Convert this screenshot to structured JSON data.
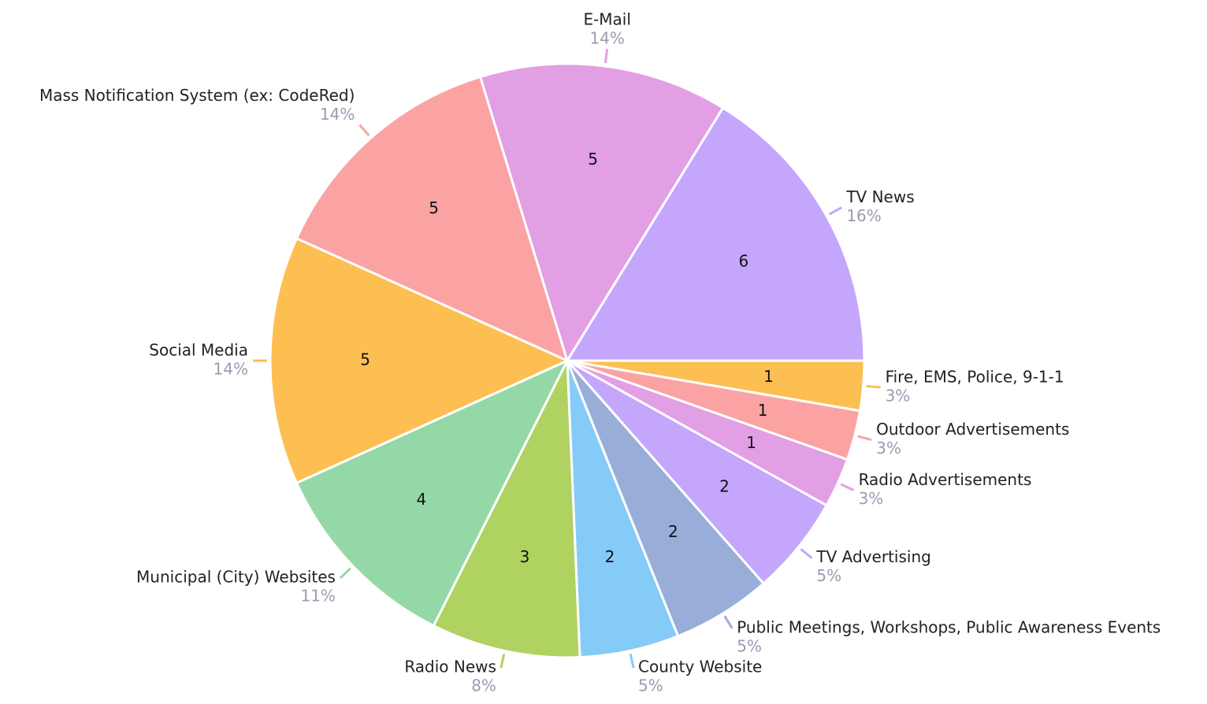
{
  "chart_data": {
    "type": "pie",
    "categories": [
      "Fire, EMS, Police, 9-1-1",
      "Outdoor Advertisements",
      "Radio Advertisements",
      "TV Advertising",
      "Public Meetings, Workshops, Public Awareness Events",
      "County Website",
      "Radio News",
      "Municipal (City) Websites",
      "Social Media",
      "Mass Notification System (ex: CodeRed)",
      "E-Mail",
      "TV News"
    ],
    "values": [
      1,
      1,
      1,
      2,
      2,
      2,
      3,
      4,
      5,
      5,
      5,
      6
    ],
    "percent_labels": [
      "3%",
      "3%",
      "3%",
      "5%",
      "5%",
      "5%",
      "8%",
      "11%",
      "14%",
      "14%",
      "14%",
      "16%"
    ],
    "colors": [
      "#fdbf52",
      "#fba3a3",
      "#e29fe4",
      "#c4a7fc",
      "#98aed9",
      "#85cbf7",
      "#b0d260",
      "#95d8a7",
      "#fdbf52",
      "#fba3a3",
      "#e29fe4",
      "#c4a7fc"
    ]
  }
}
